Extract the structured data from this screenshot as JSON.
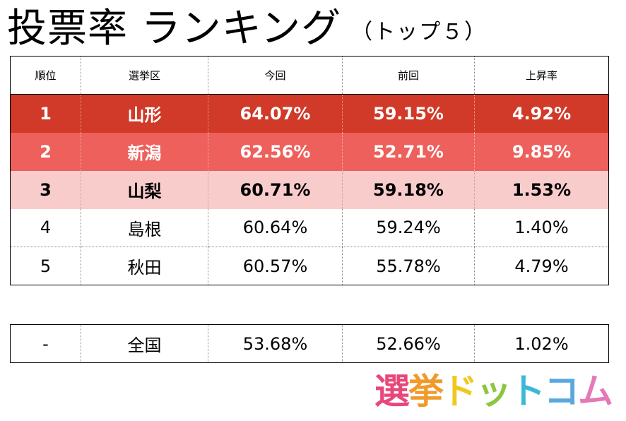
{
  "title": {
    "main": "投票率 ランキング",
    "sub": "（トップ５）"
  },
  "table": {
    "headers": [
      "順位",
      "選挙区",
      "今回",
      "前回",
      "上昇率"
    ],
    "rows": [
      {
        "rank": "1",
        "district": "山形",
        "current": "64.07%",
        "previous": "59.15%",
        "increase": "4.92%"
      },
      {
        "rank": "2",
        "district": "新潟",
        "current": "62.56%",
        "previous": "52.71%",
        "increase": "9.85%"
      },
      {
        "rank": "3",
        "district": "山梨",
        "current": "60.71%",
        "previous": "59.18%",
        "increase": "1.53%"
      },
      {
        "rank": "4",
        "district": "島根",
        "current": "60.64%",
        "previous": "59.24%",
        "increase": "1.40%"
      },
      {
        "rank": "5",
        "district": "秋田",
        "current": "60.57%",
        "previous": "55.78%",
        "increase": "4.79%"
      }
    ]
  },
  "national": {
    "rank": "-",
    "district": "全国",
    "current": "53.68%",
    "previous": "52.66%",
    "increase": "1.02%"
  },
  "logo": {
    "chars": [
      "選",
      "挙",
      "ド",
      "ッ",
      "ト",
      "コ",
      "ム"
    ]
  },
  "colors": {
    "rank1": "#d13a28",
    "rank2": "#ee605b",
    "rank3": "#f9cccc"
  }
}
